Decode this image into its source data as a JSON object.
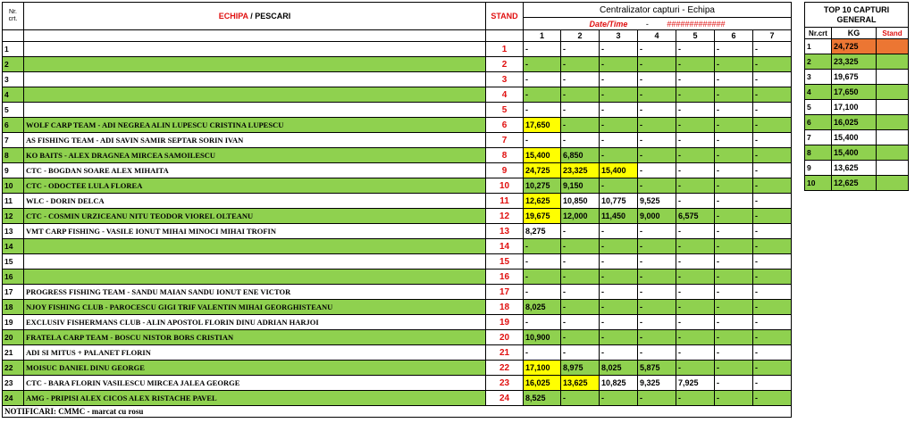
{
  "header": {
    "nr_crt": "Nr. crt.",
    "echipa": "ECHIPA",
    "sep": " / ",
    "pescari": "PESCARI",
    "stand": "STAND",
    "centralizator": "Centralizator capturi - Echipa",
    "datetime_label": "Date/Time",
    "datetime_sep": "-",
    "datetime_value": "#############",
    "days": [
      "1",
      "2",
      "3",
      "4",
      "5",
      "6",
      "7"
    ]
  },
  "rows": [
    {
      "nr": "1",
      "team": "",
      "stand": "1",
      "vals": [
        "-",
        "-",
        "-",
        "-",
        "-",
        "-",
        "-"
      ],
      "hl": []
    },
    {
      "nr": "2",
      "team": "",
      "stand": "2",
      "vals": [
        "-",
        "-",
        "-",
        "-",
        "-",
        "-",
        "-"
      ],
      "hl": []
    },
    {
      "nr": "3",
      "team": "",
      "stand": "3",
      "vals": [
        "-",
        "-",
        "-",
        "-",
        "-",
        "-",
        "-"
      ],
      "hl": []
    },
    {
      "nr": "4",
      "team": "",
      "stand": "4",
      "vals": [
        "-",
        "-",
        "-",
        "-",
        "-",
        "-",
        "-"
      ],
      "hl": []
    },
    {
      "nr": "5",
      "team": "",
      "stand": "5",
      "vals": [
        "-",
        "-",
        "-",
        "-",
        "-",
        "-",
        "-"
      ],
      "hl": []
    },
    {
      "nr": "6",
      "team": "WOLF CARP TEAM - ADI NEGREA ALIN LUPESCU CRISTINA LUPESCU",
      "stand": "6",
      "vals": [
        "17,650",
        "-",
        "-",
        "-",
        "-",
        "-",
        "-"
      ],
      "hl": [
        0
      ]
    },
    {
      "nr": "7",
      "team": "AS FISHING TEAM - ADI SAVIN SAMIR SEPTAR SORIN IVAN",
      "stand": "7",
      "vals": [
        "-",
        "-",
        "-",
        "-",
        "-",
        "-",
        "-"
      ],
      "hl": []
    },
    {
      "nr": "8",
      "team": "KO BAITS - ALEX DRAGNEA MIRCEA SAMOILESCU",
      "stand": "8",
      "vals": [
        "15,400",
        "6,850",
        "-",
        "-",
        "-",
        "-",
        "-"
      ],
      "hl": [
        0
      ]
    },
    {
      "nr": "9",
      "team": "CTC - BOGDAN SOARE ALEX MIHAITA",
      "stand": "9",
      "vals": [
        "24,725",
        "23,325",
        "15,400",
        "-",
        "-",
        "-",
        "-"
      ],
      "hl": [
        0,
        1,
        2
      ]
    },
    {
      "nr": "10",
      "team": "CTC - ODOCTEE LULA FLOREA",
      "stand": "10",
      "vals": [
        "10,275",
        "9,150",
        "-",
        "-",
        "-",
        "-",
        "-"
      ],
      "hl": []
    },
    {
      "nr": "11",
      "team": "WLC - DORIN DELCA",
      "stand": "11",
      "vals": [
        "12,625",
        "10,850",
        "10,775",
        "9,525",
        "-",
        "-",
        "-"
      ],
      "hl": [
        0
      ]
    },
    {
      "nr": "12",
      "team": "CTC - COSMIN URZICEANU NITU TEODOR VIOREL OLTEANU",
      "stand": "12",
      "vals": [
        "19,675",
        "12,000",
        "11,450",
        "9,000",
        "6,575",
        "-",
        "-"
      ],
      "hl": [
        0
      ]
    },
    {
      "nr": "13",
      "team": "VMT CARP FISHING - VASILE IONUT MIHAI MINOCI MIHAI TROFIN",
      "stand": "13",
      "vals": [
        "8,275",
        "-",
        "-",
        "-",
        "-",
        "-",
        "-"
      ],
      "hl": []
    },
    {
      "nr": "14",
      "team": "",
      "stand": "14",
      "vals": [
        "-",
        "-",
        "-",
        "-",
        "-",
        "-",
        "-"
      ],
      "hl": []
    },
    {
      "nr": "15",
      "team": "",
      "stand": "15",
      "vals": [
        "-",
        "-",
        "-",
        "-",
        "-",
        "-",
        "-"
      ],
      "hl": []
    },
    {
      "nr": "16",
      "team": "",
      "stand": "16",
      "vals": [
        "-",
        "-",
        "-",
        "-",
        "-",
        "-",
        "-"
      ],
      "hl": []
    },
    {
      "nr": "17",
      "team": "PROGRESS FISHING TEAM - SANDU MAIAN SANDU IONUT ENE VICTOR",
      "stand": "17",
      "vals": [
        "-",
        "-",
        "-",
        "-",
        "-",
        "-",
        "-"
      ],
      "hl": []
    },
    {
      "nr": "18",
      "team": "NJOY FISHING CLUB - PAROCESCU GIGI TRIF VALENTIN MIHAI GEORGHISTEANU",
      "stand": "18",
      "vals": [
        "8,025",
        "-",
        "-",
        "-",
        "-",
        "-",
        "-"
      ],
      "hl": []
    },
    {
      "nr": "19",
      "team": "EXCLUSIV FISHERMANS CLUB - ALIN APOSTOL FLORIN DINU ADRIAN HARJOI",
      "stand": "19",
      "vals": [
        "-",
        "-",
        "-",
        "-",
        "-",
        "-",
        "-"
      ],
      "hl": []
    },
    {
      "nr": "20",
      "team": "FRATELA CARP TEAM - BOSCU NISTOR BORS CRISTIAN",
      "stand": "20",
      "vals": [
        "10,900",
        "-",
        "-",
        "-",
        "-",
        "-",
        "-"
      ],
      "hl": []
    },
    {
      "nr": "21",
      "team": "ADI SI MITUS + PALANET FLORIN",
      "stand": "21",
      "vals": [
        "-",
        "-",
        "-",
        "-",
        "-",
        "-",
        "-"
      ],
      "hl": []
    },
    {
      "nr": "22",
      "team": "MOISUC DANIEL DINU GEORGE",
      "stand": "22",
      "vals": [
        "17,100",
        "8,975",
        "8,025",
        "5,875",
        "-",
        "-",
        "-"
      ],
      "hl": [
        0
      ]
    },
    {
      "nr": "23",
      "team": "CTC - BARA FLORIN VASILESCU MIRCEA JALEA GEORGE",
      "stand": "23",
      "vals": [
        "16,025",
        "13,625",
        "10,825",
        "9,325",
        "7,925",
        "-",
        "-"
      ],
      "hl": [
        0,
        1
      ]
    },
    {
      "nr": "24",
      "team": "AMG - PRIPISI ALEX CICOS ALEX RISTACHE PAVEL",
      "stand": "24",
      "vals": [
        "8,525",
        "-",
        "-",
        "-",
        "-",
        "-",
        "-"
      ],
      "hl": []
    }
  ],
  "footer": {
    "notificari": "NOTIFICARI: CMMC -  marcat cu rosu"
  },
  "top10": {
    "title_line1": "TOP 10 CAPTURI",
    "title_line2": "GENERAL",
    "col_nr": "Nr.crt",
    "col_kg": "KG",
    "col_stand": "Stand",
    "rows": [
      {
        "nr": "1",
        "kg": "24,725",
        "stand": ""
      },
      {
        "nr": "2",
        "kg": "23,325",
        "stand": ""
      },
      {
        "nr": "3",
        "kg": "19,675",
        "stand": ""
      },
      {
        "nr": "4",
        "kg": "17,650",
        "stand": ""
      },
      {
        "nr": "5",
        "kg": "17,100",
        "stand": ""
      },
      {
        "nr": "6",
        "kg": "16,025",
        "stand": ""
      },
      {
        "nr": "7",
        "kg": "15,400",
        "stand": ""
      },
      {
        "nr": "8",
        "kg": "15,400",
        "stand": ""
      },
      {
        "nr": "9",
        "kg": "13,625",
        "stand": ""
      },
      {
        "nr": "10",
        "kg": "12,625",
        "stand": ""
      }
    ]
  },
  "colors": {
    "green": "#8fd14f",
    "yellow": "#ffff00",
    "orange": "#ec7633",
    "red": "#e01010"
  }
}
